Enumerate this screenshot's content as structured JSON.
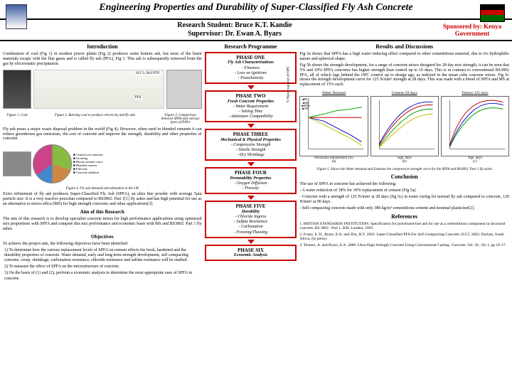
{
  "title": "Engineering Properties and Durability of Super-Classified Fly Ash Concrete",
  "student": "Research Student: Bruce K.T. Kandie",
  "supervisor": "Supervisor: Dr. Ewan A. Byars",
  "sponsor_line1": "Sponsored by: Kenya",
  "sponsor_line2": "Government",
  "sections": {
    "intro": "Introduction",
    "programme": "Research Programme",
    "results": "Results and Discussions",
    "conclusion": "Conclusion",
    "references": "References"
  },
  "intro_text": "Combustion of coal (Fig 1) in modern power plants (Fig 2) produces some bottom ash, but most of the burnt materials escape with the flue gases and is called fly ash (PFA), Fig 3. This ash is subsequently removed from the gas by electrostatic precipitation.",
  "fig1_cap": "Figure 1. Coal",
  "fig2_cap": "Figure 2. Burning coal to produce electricity and fly ash.",
  "fig3_cap": "Figure 3. Comparison between SPFA and various types of PFA's",
  "flyash_text": "Fly ash poses a major waste disposal problem in the world (Fig 4). However, when used in blended cements it can reduce greenhouse gas emissions, the cost of concrete and improve the strength, durability and other properties of concrete.",
  "fig4_cap": "Figure 4. Fly ash demand and utilisation in the UK",
  "extra_text": "Extra refinement of fly ash produces Super-Classified Fly Ash (SPFA), an ultra fine powder with average 5μm particle size. It is a very reactive pozzolan compared to BS3892: Part 1[1] fly ashes and has high potential for use as an alternative to micro-silica (MS) for high strength concretes and other applications[3].",
  "aim_head": "Aim of this Research",
  "aim_text": "The aim of this research is to develop specialist concrete mixes for high performance applications using optimised mix proportions with SPFA and compare this mix performance and economic basis with MS and BS3892: Part 1 fly ashes.",
  "obj_head": "Objectives",
  "obj_intro": "To achieve the project aim, the following objectives have been identified:",
  "obj1": "1) To determine how the various replacement levels of SPFA on cement effects the fresh, hardened and the durability properties of concrete. Water demand, early and long term strength development, self compacting concrete, creep, shrinkage, carbonation resistance, chloride resistance and sulfate resistance will be studied.",
  "obj2": "2) To measure the effect of SPFA on the microstructure of concrete.",
  "obj3": "3) On the basis of (1) and (2), perform a economic analysis to determine the most appropriate uses of SPFA in concrete.",
  "phases": [
    {
      "title": "PHASE ONE",
      "sub": "Fly Ash Characterisations",
      "items": [
        "- Fineness",
        "- Loss on Ignitions",
        "- Pozzolanicity"
      ]
    },
    {
      "title": "PHASE TWO",
      "sub": "Fresh Concrete Properties",
      "items": [
        "- Water Requirement",
        "- Setting Time",
        "- Admixture Compatibility"
      ]
    },
    {
      "title": "PHASE THREE",
      "sub": "Mechanical & Physical Properties",
      "items": [
        "- Compressive Strength",
        "- Tensile Strength",
        "- Dry Shrinkage"
      ]
    },
    {
      "title": "PHASE FOUR",
      "sub": "Permeability Properties",
      "items": [
        "- Oxygen Diffusion",
        "- Porosity"
      ]
    },
    {
      "title": "PHASE FIVE",
      "sub": "Durability",
      "items": [
        "- Chloride Ingress",
        "- Sulfate Resistance",
        "- Carbonation",
        "- Freezing/Thawing"
      ]
    },
    {
      "title": "PHASE SIX",
      "sub": "Economic Analysis",
      "items": []
    }
  ],
  "res5a": "Fig 5a shows that SPFA has a high water reducing effect compared to other cementitious material, due to it's hydrophilic nature and spherical shape.",
  "res5b": "Fig 5b shows the strength development, for a range of concrete mixes designed for 28 day mix strength, it can be seen that 5% and 10% SPFA concretes has higher strength than control up to 10 days. This is in contrast to conventional BS3892 PFA, all of which lags behind the OPC control up to design age, as indicted in the mean cube concrete mixes. Fig 5c shows the strength development curve for 125 N/mm² strength at 28 days. This was made with a blend of SPFA and MS at replacement of 15% each.",
  "chart_titles": [
    "Water Demand",
    "Cement-28 days",
    "Fitness-125 days"
  ],
  "chart_data": {
    "type": "line",
    "colors": {
      "opc": "#c00000",
      "pfa": "#00a000",
      "spfa": "#0000c0",
      "ms": "#c0c000"
    },
    "xlabel_a": "Pozzolana replacement (%)",
    "xlabel_bc": "Age, days",
    "ylabel_a": "% Water required of OPC",
    "ylabel_bc": "Compressive Strength, N/mm²",
    "legend": [
      "OPC",
      "PFA",
      "SPFA",
      "MS"
    ],
    "xlim_a": [
      0,
      40
    ],
    "ylim_a": [
      80,
      110
    ],
    "xlim_b": [
      0,
      30
    ],
    "ylim_b": [
      0,
      60
    ],
    "xlim_c": [
      0,
      30
    ],
    "ylim_c": [
      0,
      140
    ]
  },
  "fig5_cap": "Figure 5. Shows the Water demand and Examine the compressive strength curve for the SPFA and BS3892: Part 1 fly ashes",
  "concl_intro": "The use of SPFA in concrete has achieved the following:",
  "concl1": "- A water reduction of 18% for 30% replacement of cement (Fig 5a).",
  "concl2": "- Concrete with a strength of 125 N/mm² at 28 days (fig 5c) in water curing for normal fly ash compared to concrete, 120 N/mm² at 90 days.",
  "concl3": "- Self compacting concrete made with only 380 kg/m³ cementitious cement and nominal plasticiser[2].",
  "ref1": "1. BRITISH STANDARDS INSTITUTION. Specification for pulverised-fuel ash for use as a cementitious component in structural concrete. BS 3892 : Part 1. BSI, London, 1993.",
  "ref2": "2. Fosey, S. D., Byars, E.A. and Zhu, H.Y. 2003. Super-Classified PFA For Self-Compacting Concrete. ICCC 2003. Durban, South Africa, (in press).",
  "ref3": "3. Teuteru, A. and Byars, E.A. 2000. Ultra-High Strength Concrete Using Conventional Casting. Concrete, Vol. 36 , No 1, pp 16-17."
}
